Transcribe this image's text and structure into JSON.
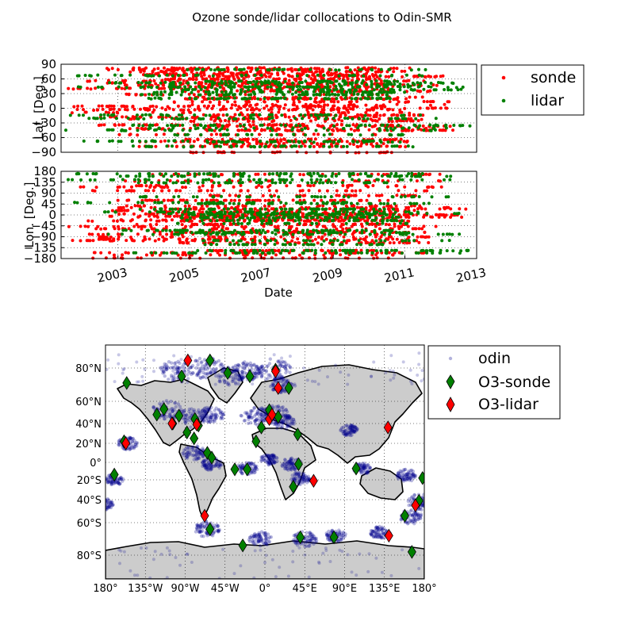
{
  "figure": {
    "title": "Ozone sonde/lidar collocations to Odin-SMR"
  },
  "colors": {
    "sonde": "#ff0000",
    "lidar": "#008000",
    "odin": "#00008b",
    "land": "#cccccc"
  },
  "chart_data": [
    {
      "type": "scatter",
      "panel": "latitude-timeseries",
      "ylabel": "Lat. [Deg.]",
      "xlabel": "",
      "ylim": [
        -90,
        90
      ],
      "xlim": [
        "2001-06-01",
        "2013-01-01"
      ],
      "yticks": [
        "90",
        "60",
        "30",
        "0",
        "−30",
        "−60",
        "−90"
      ],
      "ytick_values": [
        90,
        60,
        30,
        0,
        -30,
        -60,
        -90
      ],
      "grid": true,
      "legend": {
        "placement": "right",
        "entries": [
          "sonde",
          "lidar"
        ]
      },
      "series": [
        {
          "name": "sonde",
          "color": "#ff0000",
          "x_start": "2001-06-01",
          "x_end": "2013-01-01",
          "y_levels": [
            82,
            79,
            75,
            71,
            68,
            65,
            60,
            56,
            52,
            50,
            47,
            44,
            40,
            35,
            28,
            22,
            19,
            13,
            7,
            4,
            0,
            -3,
            -9,
            -14,
            -18,
            -22,
            -26,
            -34,
            -37,
            -42,
            -45,
            -54,
            -64,
            -68,
            -73,
            -78,
            -90
          ]
        },
        {
          "name": "lidar",
          "color": "#008000",
          "x_start": "2001-06-01",
          "x_end": "2013-01-01",
          "y_levels": [
            79,
            67,
            55,
            52,
            49,
            44,
            43,
            38,
            33,
            28,
            20,
            -14,
            -21,
            -35,
            -41,
            -45,
            -54,
            -67,
            -69,
            -78
          ]
        }
      ]
    },
    {
      "type": "scatter",
      "panel": "longitude-timeseries",
      "ylabel": "Lon. [Deg.]",
      "xlabel": "Date",
      "ylim": [
        -180,
        180
      ],
      "xlim": [
        "2001-06-01",
        "2013-01-01"
      ],
      "yticks": [
        "180",
        "135",
        "90",
        "45",
        "0",
        "−45",
        "−90",
        "−135",
        "−180"
      ],
      "ytick_values": [
        180,
        135,
        90,
        45,
        0,
        -45,
        -90,
        -135,
        -180
      ],
      "xticks": [
        "2003",
        "2005",
        "2007",
        "2009",
        "2011",
        "2013"
      ],
      "grid": true,
      "series": [
        {
          "name": "sonde",
          "color": "#ff0000",
          "x_start": "2001-06-01",
          "x_end": "2013-01-01",
          "y_levels": [
            167,
            140,
            121,
            115,
            100,
            80,
            60,
            37,
            30,
            25,
            18,
            12,
            7,
            4,
            0,
            -5,
            -9,
            -15,
            -21,
            -25,
            -39,
            -48,
            -57,
            -68,
            -72,
            -80,
            -91,
            -100,
            -106,
            -115,
            -147,
            -156,
            -165,
            -178
          ]
        },
        {
          "name": "lidar",
          "color": "#008000",
          "x_start": "2001-06-01",
          "x_end": "2013-01-01",
          "y_levels": [
            170,
            160,
            145,
            133,
            75,
            51,
            47,
            24,
            12,
            6,
            1,
            -9,
            -12,
            -23,
            -35,
            -64,
            -73,
            -80,
            -106,
            -122,
            -147,
            -157
          ]
        }
      ]
    },
    {
      "type": "map",
      "panel": "world-map",
      "lon_range": [
        -180,
        180
      ],
      "lat_range": [
        -90,
        90
      ],
      "projection": "mercator",
      "xticks": [
        "180°",
        "135°W",
        "90°W",
        "45°W",
        "0°",
        "45°E",
        "90°E",
        "135°E",
        "180°"
      ],
      "yticks": [
        "80°N",
        "60°N",
        "40°N",
        "20°N",
        "0°",
        "20°S",
        "40°S",
        "60°S",
        "80°S"
      ],
      "ytick_values": [
        80,
        60,
        40,
        20,
        0,
        -20,
        -40,
        -60,
        -80
      ],
      "grid": true,
      "legend": {
        "placement": "right",
        "entries": [
          "odin",
          "O3-sonde",
          "O3-lidar"
        ]
      },
      "odin_clusters": [
        [
          -100,
          78,
          14
        ],
        [
          -65,
          80,
          14
        ],
        [
          -40,
          75,
          12
        ],
        [
          -20,
          78,
          12
        ],
        [
          10,
          79,
          14
        ],
        [
          20,
          70,
          10
        ],
        [
          -110,
          52,
          12
        ],
        [
          -80,
          45,
          12
        ],
        [
          -60,
          48,
          10
        ],
        [
          -10,
          47,
          12
        ],
        [
          10,
          48,
          12
        ],
        [
          20,
          42,
          10
        ],
        [
          -155,
          20,
          8
        ],
        [
          -80,
          10,
          9
        ],
        [
          -60,
          -2,
          8
        ],
        [
          -20,
          -7,
          8
        ],
        [
          5,
          3,
          7
        ],
        [
          30,
          -2,
          8
        ],
        [
          40,
          -18,
          8
        ],
        [
          95,
          33,
          7
        ],
        [
          110,
          -7,
          7
        ],
        [
          160,
          -15,
          8
        ],
        [
          175,
          -42,
          10
        ],
        [
          165,
          -55,
          9
        ],
        [
          130,
          -66,
          8
        ],
        [
          -65,
          -64,
          10
        ],
        [
          -5,
          -70,
          9
        ],
        [
          45,
          -70,
          10
        ],
        [
          80,
          -68,
          8
        ],
        [
          -180,
          -44,
          7
        ],
        [
          -170,
          -20,
          7
        ]
      ],
      "sonde_sites": [
        [
          -156,
          71
        ],
        [
          -94,
          75
        ],
        [
          -62,
          82
        ],
        [
          -42,
          77
        ],
        [
          -17,
          75
        ],
        [
          12,
          79
        ],
        [
          27,
          68
        ],
        [
          -122,
          48
        ],
        [
          -114,
          53
        ],
        [
          -104,
          40
        ],
        [
          -97,
          47
        ],
        [
          -79,
          44
        ],
        [
          -75,
          38
        ],
        [
          -88,
          31
        ],
        [
          -80,
          25
        ],
        [
          -65,
          10
        ],
        [
          -60,
          5
        ],
        [
          -34,
          -8
        ],
        [
          -20,
          -8
        ],
        [
          -10,
          22
        ],
        [
          5,
          52
        ],
        [
          15,
          46
        ],
        [
          -4,
          36
        ],
        [
          37,
          29
        ],
        [
          38,
          -2
        ],
        [
          32,
          -27
        ],
        [
          -159,
          22
        ],
        [
          -170,
          -14
        ],
        [
          103,
          -7
        ],
        [
          174,
          -41
        ],
        [
          158,
          -54
        ],
        [
          -62,
          -64
        ],
        [
          -25,
          -74
        ],
        [
          40,
          -69
        ],
        [
          78,
          -69
        ],
        [
          166,
          -78
        ],
        [
          178,
          -18
        ]
      ],
      "lidar_sites": [
        [
          -157,
          20
        ],
        [
          -105,
          40
        ],
        [
          -77,
          39
        ],
        [
          -87,
          82
        ],
        [
          12,
          78
        ],
        [
          15,
          68
        ],
        [
          5,
          44
        ],
        [
          8,
          48
        ],
        [
          55,
          -21
        ],
        [
          139,
          36
        ],
        [
          -68,
          -54
        ],
        [
          140,
          -68
        ],
        [
          170,
          -45
        ]
      ]
    }
  ]
}
